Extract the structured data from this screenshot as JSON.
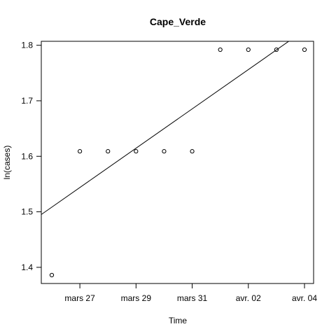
{
  "chart_data": {
    "type": "scatter",
    "title": "Cape_Verde",
    "xlabel": "Time",
    "ylabel": "ln(cases)",
    "x_ticks": [
      {
        "x": "2020-03-27",
        "label": "mars 27"
      },
      {
        "x": "2020-03-29",
        "label": "mars 29"
      },
      {
        "x": "2020-03-31",
        "label": "mars 31"
      },
      {
        "x": "2020-04-02",
        "label": "avr. 02"
      },
      {
        "x": "2020-04-04",
        "label": "avr. 04"
      }
    ],
    "y_ticks": [
      1.4,
      1.5,
      1.6,
      1.7,
      1.8
    ],
    "xlim": [
      "2020-03-25",
      "2020-04-04"
    ],
    "ylim": [
      1.386,
      1.792
    ],
    "points": [
      {
        "x": "2020-03-26",
        "y": 1.386
      },
      {
        "x": "2020-03-27",
        "y": 1.609
      },
      {
        "x": "2020-03-28",
        "y": 1.609
      },
      {
        "x": "2020-03-29",
        "y": 1.609
      },
      {
        "x": "2020-03-30",
        "y": 1.609
      },
      {
        "x": "2020-03-31",
        "y": 1.609
      },
      {
        "x": "2020-04-01",
        "y": 1.792
      },
      {
        "x": "2020-04-02",
        "y": 1.792
      },
      {
        "x": "2020-04-03",
        "y": 1.792
      },
      {
        "x": "2020-04-04",
        "y": 1.792
      }
    ],
    "fit_line": {
      "start": {
        "x": "2020-03-25",
        "y": 1.473
      },
      "end": {
        "x": "2020-04-04",
        "y": 1.827
      }
    },
    "grid": false,
    "legend": "none"
  }
}
